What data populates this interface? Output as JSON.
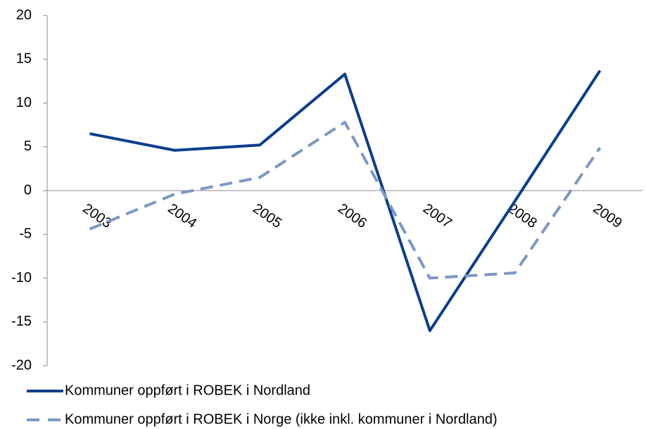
{
  "chart_data": {
    "type": "line",
    "categories": [
      "2003",
      "2004",
      "2005",
      "2006",
      "2007",
      "2008",
      "2009"
    ],
    "series": [
      {
        "name": "Kommuner oppført i ROBEK i Nordland",
        "color": "#0b3d8c",
        "dash": false,
        "values": [
          6.5,
          4.6,
          5.2,
          13.3,
          -16,
          -1.2,
          13.7
        ]
      },
      {
        "name": "Kommuner oppført i ROBEK i Norge (ikke inkl. kommuner i Nordland)",
        "color": "#7b98c4",
        "dash": true,
        "values": [
          -4.4,
          -0.4,
          1.5,
          7.8,
          -10,
          -9.4,
          4.9
        ]
      }
    ],
    "ylim": [
      -20,
      20
    ],
    "yticks": [
      -20,
      -15,
      -10,
      -5,
      0,
      5,
      10,
      15,
      20
    ],
    "grid": false
  }
}
